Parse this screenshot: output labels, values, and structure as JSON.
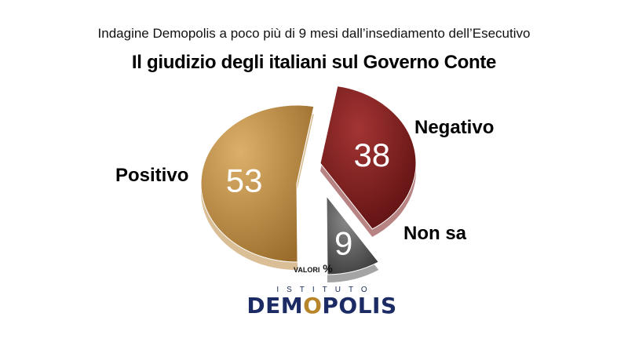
{
  "header": {
    "subtitle": "Indagine Demopolis a poco più di 9 mesi dall’insediamento dell’Esecutivo",
    "title": "Il giudizio degli italiani sul Governo Conte"
  },
  "chart_data": {
    "type": "pie",
    "title": "Il giudizio degli italiani sul Governo Conte",
    "unit": "VALORI %",
    "slices": [
      {
        "name": "Positivo",
        "value": 53,
        "color": "#b98840"
      },
      {
        "name": "Negativo",
        "value": 38,
        "color": "#7e1e1e"
      },
      {
        "name": "Non sa",
        "value": 9,
        "color": "#595959"
      }
    ]
  },
  "labels": {
    "positivo": "Positivo",
    "negativo": "Negativo",
    "nonsa": "Non sa",
    "unit_main": "VALORI",
    "unit_pct": "%"
  },
  "logo": {
    "top": "ISTITUTO",
    "main_a": "DEM",
    "main_o": "O",
    "main_b": "POLIS"
  }
}
